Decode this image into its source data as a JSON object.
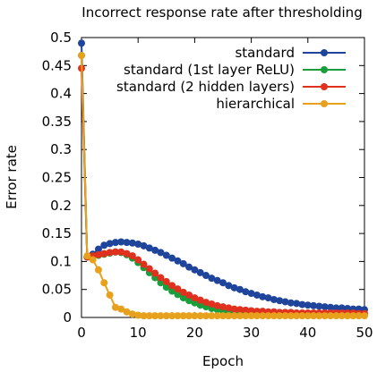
{
  "chart_data": {
    "type": "line",
    "title": "Incorrect response rate after thresholding",
    "xlabel": "Epoch",
    "ylabel": "Error rate",
    "xlim": [
      0,
      50
    ],
    "ylim": [
      0,
      0.5
    ],
    "xticks": [
      "0",
      "10",
      "20",
      "30",
      "40",
      "50"
    ],
    "yticks": [
      "0",
      "0.05",
      "0.1",
      "0.15",
      "0.2",
      "0.25",
      "0.3",
      "0.35",
      "0.4",
      "0.45",
      "0.5"
    ],
    "grid": false,
    "legend": "top-right",
    "x": [
      0,
      1,
      2,
      3,
      4,
      5,
      6,
      7,
      8,
      9,
      10,
      11,
      12,
      13,
      14,
      15,
      16,
      17,
      18,
      19,
      20,
      21,
      22,
      23,
      24,
      25,
      26,
      27,
      28,
      29,
      30,
      31,
      32,
      33,
      34,
      35,
      36,
      37,
      38,
      39,
      40,
      41,
      42,
      43,
      44,
      45,
      46,
      47,
      48,
      49,
      50
    ],
    "series": [
      {
        "name": "standard",
        "color": "#1f449c",
        "values": [
          0.49,
          0.108,
          0.113,
          0.122,
          0.129,
          0.132,
          0.134,
          0.135,
          0.134,
          0.133,
          0.131,
          0.128,
          0.124,
          0.12,
          0.116,
          0.111,
          0.106,
          0.101,
          0.096,
          0.09,
          0.085,
          0.08,
          0.075,
          0.07,
          0.066,
          0.062,
          0.057,
          0.053,
          0.05,
          0.046,
          0.043,
          0.04,
          0.037,
          0.035,
          0.032,
          0.03,
          0.028,
          0.026,
          0.025,
          0.023,
          0.022,
          0.021,
          0.02,
          0.019,
          0.018,
          0.017,
          0.017,
          0.016,
          0.015,
          0.015,
          0.014
        ]
      },
      {
        "name": "standard (1st layer ReLU)",
        "color": "#1a9e3c",
        "values": [
          0.468,
          0.108,
          0.11,
          0.111,
          0.113,
          0.115,
          0.117,
          0.116,
          0.112,
          0.106,
          0.098,
          0.089,
          0.08,
          0.071,
          0.062,
          0.054,
          0.047,
          0.041,
          0.035,
          0.03,
          0.026,
          0.022,
          0.019,
          0.016,
          0.014,
          0.012,
          0.011,
          0.01,
          0.009,
          0.008,
          0.007,
          0.007,
          0.006,
          0.006,
          0.005,
          0.005,
          0.005,
          0.005,
          0.004,
          0.004,
          0.004,
          0.004,
          0.004,
          0.004,
          0.004,
          0.004,
          0.004,
          0.004,
          0.004,
          0.004,
          0.004
        ]
      },
      {
        "name": "standard (2 hidden layers)",
        "color": "#e0301e",
        "values": [
          0.445,
          0.108,
          0.11,
          0.112,
          0.114,
          0.116,
          0.117,
          0.117,
          0.114,
          0.11,
          0.103,
          0.095,
          0.087,
          0.079,
          0.071,
          0.064,
          0.057,
          0.051,
          0.045,
          0.04,
          0.035,
          0.031,
          0.027,
          0.024,
          0.021,
          0.019,
          0.017,
          0.015,
          0.014,
          0.013,
          0.012,
          0.011,
          0.011,
          0.01,
          0.01,
          0.009,
          0.009,
          0.009,
          0.008,
          0.008,
          0.008,
          0.008,
          0.008,
          0.008,
          0.008,
          0.008,
          0.008,
          0.008,
          0.008,
          0.007,
          0.007
        ]
      },
      {
        "name": "hierarchical",
        "color": "#e8a11c",
        "values": [
          0.468,
          0.11,
          0.103,
          0.085,
          0.062,
          0.04,
          0.018,
          0.015,
          0.01,
          0.006,
          0.004,
          0.003,
          0.003,
          0.003,
          0.003,
          0.003,
          0.003,
          0.003,
          0.003,
          0.003,
          0.003,
          0.003,
          0.003,
          0.003,
          0.003,
          0.003,
          0.003,
          0.003,
          0.003,
          0.003,
          0.003,
          0.003,
          0.003,
          0.003,
          0.003,
          0.003,
          0.003,
          0.003,
          0.003,
          0.003,
          0.003,
          0.003,
          0.003,
          0.003,
          0.003,
          0.003,
          0.003,
          0.003,
          0.003,
          0.003,
          0.003
        ]
      }
    ]
  }
}
